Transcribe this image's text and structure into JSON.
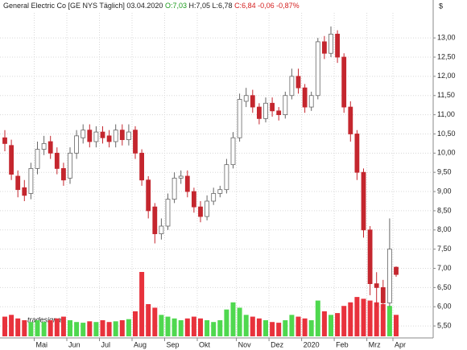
{
  "chart_data": {
    "type": "candlestick",
    "title": "General Electric Co [GE NYS  Täglich] 03.04.2020",
    "quote_open": "O:7,03",
    "quote_high_low": "H:7,05 L:6,78",
    "quote_close": "C:6,84 -0,06 -0,87%",
    "y_unit": "$",
    "watermark": "tradesignal",
    "categories": [
      null,
      null,
      null,
      null,
      null,
      "Mai",
      null,
      null,
      null,
      null,
      "Jun",
      null,
      null,
      null,
      null,
      "Jul",
      null,
      null,
      null,
      null,
      "Aug",
      null,
      null,
      null,
      null,
      "Sep",
      null,
      null,
      null,
      null,
      "Okt",
      null,
      null,
      null,
      null,
      null,
      "Nov",
      null,
      null,
      null,
      null,
      "Dez",
      null,
      null,
      null,
      null,
      "2020",
      null,
      null,
      null,
      null,
      "Feb",
      null,
      null,
      null,
      null,
      "Mrz",
      null,
      null,
      null,
      "Apr"
    ],
    "open": [
      10.4,
      10.2,
      9.4,
      9.1,
      8.95,
      9.6,
      10.1,
      10.3,
      10.0,
      9.6,
      9.35,
      10.0,
      10.4,
      10.6,
      10.3,
      10.55,
      10.45,
      10.3,
      10.6,
      10.35,
      10.6,
      10.0,
      9.3,
      8.6,
      7.9,
      8.1,
      8.8,
      9.35,
      9.4,
      9.0,
      8.6,
      8.35,
      8.75,
      8.95,
      9.05,
      9.7,
      10.4,
      11.35,
      11.5,
      11.2,
      10.9,
      11.3,
      11.1,
      11.0,
      11.5,
      12.0,
      11.7,
      11.2,
      11.5,
      12.9,
      12.6,
      13.1,
      12.5,
      11.2,
      10.5,
      9.5,
      8.0,
      6.6,
      6.5,
      6.1,
      7.03
    ],
    "high": [
      10.6,
      10.35,
      9.55,
      9.3,
      9.75,
      10.3,
      10.45,
      10.45,
      10.15,
      9.75,
      10.15,
      10.6,
      10.75,
      10.75,
      10.7,
      10.7,
      10.6,
      10.75,
      10.75,
      10.75,
      10.7,
      10.1,
      9.4,
      8.7,
      8.3,
      8.95,
      9.5,
      9.55,
      9.55,
      9.1,
      8.75,
      8.9,
      9.1,
      9.15,
      9.85,
      10.55,
      11.55,
      11.7,
      11.65,
      11.3,
      11.45,
      11.45,
      11.2,
      11.6,
      12.2,
      12.2,
      11.8,
      11.6,
      13.0,
      13.05,
      13.3,
      13.2,
      12.6,
      11.35,
      10.6,
      9.6,
      8.1,
      6.9,
      6.7,
      8.3,
      7.05
    ],
    "low": [
      10.05,
      9.3,
      8.85,
      8.75,
      8.8,
      9.45,
      9.95,
      9.85,
      9.45,
      9.15,
      9.2,
      9.85,
      10.25,
      10.15,
      10.15,
      10.25,
      10.15,
      10.15,
      10.2,
      10.2,
      9.85,
      9.15,
      8.3,
      7.65,
      7.75,
      8.0,
      8.7,
      9.2,
      8.85,
      8.45,
      8.2,
      8.25,
      8.65,
      8.85,
      8.95,
      9.6,
      10.3,
      11.2,
      11.05,
      10.75,
      10.8,
      10.95,
      10.85,
      10.9,
      11.4,
      11.55,
      11.05,
      11.1,
      11.4,
      12.45,
      12.5,
      12.35,
      11.05,
      10.3,
      9.3,
      7.8,
      6.3,
      6.0,
      5.9,
      6.0,
      6.78
    ],
    "close": [
      10.25,
      9.45,
      9.05,
      8.9,
      9.6,
      10.1,
      10.25,
      10.0,
      9.6,
      9.3,
      10.0,
      10.45,
      10.6,
      10.3,
      10.55,
      10.4,
      10.3,
      10.6,
      10.35,
      10.55,
      10.0,
      9.3,
      8.5,
      7.9,
      8.1,
      8.8,
      9.35,
      9.4,
      9.0,
      8.6,
      8.35,
      8.75,
      8.95,
      9.05,
      9.7,
      10.4,
      11.4,
      11.5,
      11.2,
      10.9,
      11.3,
      11.1,
      11.0,
      11.5,
      12.0,
      11.7,
      11.2,
      11.5,
      12.9,
      12.6,
      13.1,
      12.5,
      11.2,
      10.5,
      9.5,
      8.0,
      6.6,
      6.5,
      6.1,
      7.5,
      6.84
    ],
    "volume": [
      55,
      60,
      50,
      45,
      40,
      45,
      40,
      45,
      50,
      55,
      45,
      40,
      38,
      42,
      40,
      45,
      40,
      42,
      45,
      48,
      70,
      180,
      90,
      80,
      60,
      55,
      50,
      45,
      50,
      55,
      50,
      45,
      40,
      45,
      75,
      95,
      80,
      60,
      55,
      50,
      45,
      40,
      38,
      45,
      60,
      55,
      50,
      45,
      100,
      70,
      60,
      65,
      85,
      95,
      110,
      105,
      100,
      95,
      90,
      85,
      60
    ],
    "up_color": "#ffffff",
    "down_color": "#c4262e",
    "volume_up_color": "#4fd84f",
    "volume_down_color": "#e8323c",
    "ylim": [
      5.23,
      13.82
    ],
    "yticks": [
      {
        "value": 5.5,
        "label": "5,50"
      },
      {
        "value": 6,
        "label": "6,00"
      },
      {
        "value": 6.5,
        "label": "6,50"
      },
      {
        "value": 7,
        "label": "7,00"
      },
      {
        "value": 7.5,
        "label": "7,50"
      },
      {
        "value": 8,
        "label": "8,00"
      },
      {
        "value": 8.5,
        "label": "8,50"
      },
      {
        "value": 9,
        "label": "9,00"
      },
      {
        "value": 9.5,
        "label": "9,50"
      },
      {
        "value": 10,
        "label": "10,00"
      },
      {
        "value": 10.5,
        "label": "10,50"
      },
      {
        "value": 11,
        "label": "11,00"
      },
      {
        "value": 11.5,
        "label": "11,50"
      },
      {
        "value": 12,
        "label": "12,00"
      },
      {
        "value": 12.5,
        "label": "12,50"
      },
      {
        "value": 13,
        "label": "13,00"
      }
    ],
    "grid": true
  }
}
